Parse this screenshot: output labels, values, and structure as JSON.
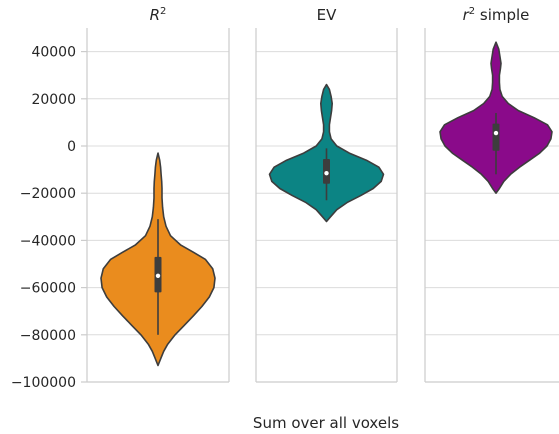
{
  "chart_data": {
    "type": "violin",
    "xlabel": "Sum over all voxels",
    "ylim": [
      -100000,
      50000
    ],
    "yticks": [
      40000,
      20000,
      0,
      -20000,
      -40000,
      -60000,
      -80000,
      -100000
    ],
    "ytick_labels": [
      "40000",
      "20000",
      "0",
      "−20000",
      "−40000",
      "−60000",
      "−80000",
      "−100000"
    ],
    "grid": true,
    "panels": [
      {
        "title_main": "R",
        "title_sup": "2",
        "title_rest": "",
        "color": "#ea8c1e",
        "range": [
          -93000,
          -3000
        ],
        "q1": -62000,
        "median": -55000,
        "q3": -47000,
        "whisker_low": -80000,
        "whisker_high": -31000,
        "profile": [
          [
            -93000,
            0.0
          ],
          [
            -90000,
            0.05
          ],
          [
            -87000,
            0.1
          ],
          [
            -84000,
            0.17
          ],
          [
            -80000,
            0.3
          ],
          [
            -76000,
            0.46
          ],
          [
            -72000,
            0.62
          ],
          [
            -68000,
            0.77
          ],
          [
            -64000,
            0.9
          ],
          [
            -60000,
            0.98
          ],
          [
            -56000,
            1.0
          ],
          [
            -52000,
            0.96
          ],
          [
            -48000,
            0.83
          ],
          [
            -45000,
            0.62
          ],
          [
            -42000,
            0.4
          ],
          [
            -38000,
            0.22
          ],
          [
            -34000,
            0.14
          ],
          [
            -30000,
            0.1
          ],
          [
            -26000,
            0.08
          ],
          [
            -22000,
            0.07
          ],
          [
            -18000,
            0.07
          ],
          [
            -15000,
            0.065
          ],
          [
            -12000,
            0.055
          ],
          [
            -9000,
            0.045
          ],
          [
            -6000,
            0.03
          ],
          [
            -3000,
            0.0
          ]
        ]
      },
      {
        "title_main": "EV",
        "title_sup": "",
        "title_rest": "",
        "color": "#0c8484",
        "range": [
          -32000,
          26000
        ],
        "q1": -16000,
        "median": -11500,
        "q3": -5500,
        "whisker_low": -23000,
        "whisker_high": -1000,
        "profile": [
          [
            -32000,
            0.0
          ],
          [
            -30000,
            0.07
          ],
          [
            -27000,
            0.18
          ],
          [
            -24000,
            0.36
          ],
          [
            -21000,
            0.6
          ],
          [
            -18000,
            0.82
          ],
          [
            -15000,
            0.96
          ],
          [
            -12000,
            1.0
          ],
          [
            -9000,
            0.92
          ],
          [
            -6000,
            0.7
          ],
          [
            -3000,
            0.4
          ],
          [
            0,
            0.18
          ],
          [
            3000,
            0.08
          ],
          [
            6000,
            0.05
          ],
          [
            9000,
            0.05
          ],
          [
            12000,
            0.07
          ],
          [
            15000,
            0.09
          ],
          [
            18000,
            0.1
          ],
          [
            21000,
            0.08
          ],
          [
            24000,
            0.05
          ],
          [
            26000,
            0.0
          ]
        ]
      },
      {
        "title_main": "r",
        "title_sup": "2",
        "title_rest": " simple",
        "color": "#8a0a8a",
        "range": [
          -20000,
          44000
        ],
        "q1": -2000,
        "median": 5500,
        "q3": 9500,
        "whisker_low": -12000,
        "whisker_high": 14000,
        "profile": [
          [
            -20000,
            0.0
          ],
          [
            -18000,
            0.06
          ],
          [
            -15000,
            0.14
          ],
          [
            -12000,
            0.26
          ],
          [
            -9000,
            0.42
          ],
          [
            -6000,
            0.6
          ],
          [
            -3000,
            0.78
          ],
          [
            0,
            0.91
          ],
          [
            3000,
            0.98
          ],
          [
            6000,
            1.0
          ],
          [
            9000,
            0.92
          ],
          [
            12000,
            0.68
          ],
          [
            15000,
            0.4
          ],
          [
            18000,
            0.22
          ],
          [
            21000,
            0.11
          ],
          [
            24000,
            0.07
          ],
          [
            27000,
            0.06
          ],
          [
            30000,
            0.06
          ],
          [
            33000,
            0.08
          ],
          [
            35000,
            0.09
          ],
          [
            38000,
            0.07
          ],
          [
            41000,
            0.05
          ],
          [
            44000,
            0.0
          ]
        ]
      }
    ]
  }
}
